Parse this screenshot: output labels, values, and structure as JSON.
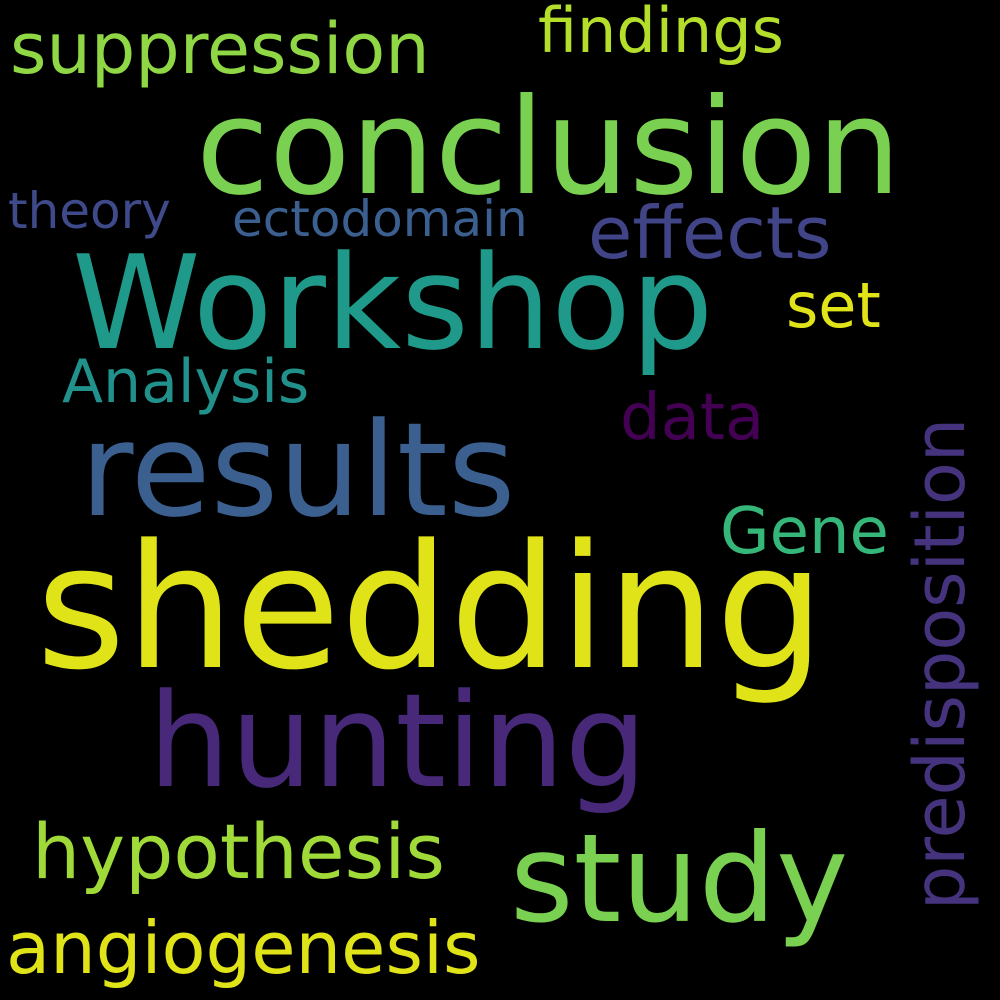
{
  "background": "#000000",
  "words": [
    {
      "key": "shedding",
      "text": "shedding",
      "color": "#dfe318"
    },
    {
      "key": "conclusion",
      "text": "conclusion",
      "color": "#7ad151"
    },
    {
      "key": "workshop",
      "text": "Workshop",
      "color": "#1f9a8a"
    },
    {
      "key": "results",
      "text": "results",
      "color": "#3b5f8f"
    },
    {
      "key": "hunting",
      "text": "hunting",
      "color": "#482878"
    },
    {
      "key": "study",
      "text": "study",
      "color": "#7ad151"
    },
    {
      "key": "suppression",
      "text": "suppression",
      "color": "#8fd744"
    },
    {
      "key": "findings",
      "text": "findings",
      "color": "#b5de2b"
    },
    {
      "key": "effects",
      "text": "effects",
      "color": "#414487"
    },
    {
      "key": "theory",
      "text": "theory",
      "color": "#3e4a89"
    },
    {
      "key": "ectodomain",
      "text": "ectodomain",
      "color": "#3b5f8f"
    },
    {
      "key": "set",
      "text": "set",
      "color": "#dfe318"
    },
    {
      "key": "analysis",
      "text": "Analysis",
      "color": "#21918c"
    },
    {
      "key": "data",
      "text": "data",
      "color": "#440154"
    },
    {
      "key": "gene",
      "text": "Gene",
      "color": "#35b779"
    },
    {
      "key": "hypothesis",
      "text": "hypothesis",
      "color": "#a0da39"
    },
    {
      "key": "angiogenesis",
      "text": "angiogenesis",
      "color": "#dfe318"
    },
    {
      "key": "predisposition",
      "text": "predisposition",
      "color": "#46337e"
    }
  ]
}
